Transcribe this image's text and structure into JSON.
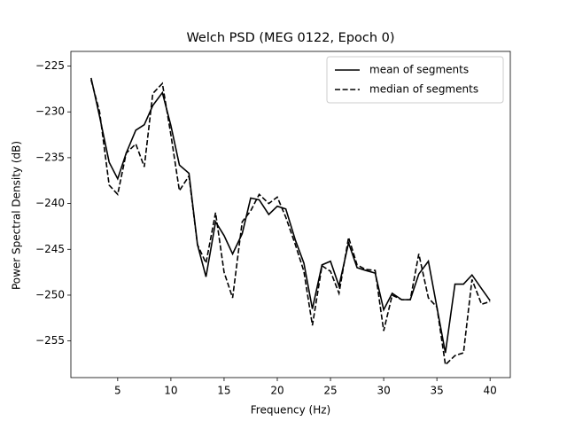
{
  "chart_data": {
    "type": "line",
    "title": "Welch PSD (MEG 0122, Epoch 0)",
    "x_label": "Frequency (Hz)",
    "y_label": "Power Spectral Density (dB)",
    "x": [
      2.5,
      3.3,
      4.2,
      5.0,
      5.8,
      6.7,
      7.5,
      8.3,
      9.2,
      10.0,
      10.8,
      11.7,
      12.5,
      13.3,
      14.2,
      15.0,
      15.8,
      16.7,
      17.5,
      18.3,
      19.2,
      20.0,
      20.8,
      21.7,
      22.5,
      23.3,
      24.2,
      25.0,
      25.8,
      26.7,
      27.5,
      28.3,
      29.2,
      30.0,
      30.8,
      31.7,
      32.5,
      33.3,
      34.2,
      35.0,
      35.8,
      36.7,
      37.5,
      38.3,
      39.2,
      40.0
    ],
    "series": [
      {
        "name": "mean of segments",
        "color": "#000000",
        "dash": false,
        "values": [
          -226.3,
          -230.5,
          -235.5,
          -237.3,
          -234.5,
          -232.0,
          -231.4,
          -229.3,
          -227.9,
          -231.5,
          -235.8,
          -236.7,
          -244.5,
          -248.0,
          -242.0,
          -243.5,
          -245.5,
          -243.3,
          -239.4,
          -239.6,
          -241.2,
          -240.3,
          -240.6,
          -244.0,
          -246.5,
          -251.5,
          -246.7,
          -246.3,
          -249.0,
          -244.3,
          -247.0,
          -247.3,
          -247.6,
          -251.6,
          -249.8,
          -250.5,
          -250.5,
          -247.7,
          -246.3,
          -251.3,
          -256.3,
          -248.8,
          -248.8,
          -247.8,
          -249.3,
          -250.6
        ]
      },
      {
        "name": "median of segments",
        "color": "#000000",
        "dash": true,
        "values": [
          -226.5,
          -230.0,
          -238.0,
          -239.0,
          -234.5,
          -233.5,
          -236.0,
          -228.0,
          -226.9,
          -232.5,
          -238.6,
          -237.0,
          -244.5,
          -246.5,
          -241.0,
          -247.5,
          -250.3,
          -242.0,
          -240.8,
          -239.0,
          -240.0,
          -239.3,
          -241.5,
          -244.5,
          -247.4,
          -253.3,
          -246.8,
          -247.4,
          -249.8,
          -243.7,
          -246.7,
          -247.2,
          -247.3,
          -253.9,
          -250.0,
          -250.5,
          -250.5,
          -245.5,
          -250.3,
          -251.3,
          -257.6,
          -256.6,
          -256.3,
          -248.3,
          -251.0,
          -250.7
        ]
      }
    ],
    "xlim": [
      0.6,
      41.9
    ],
    "ylim": [
      -259.0,
      -223.4
    ],
    "xticks": [
      5,
      10,
      15,
      20,
      25,
      30,
      35,
      40
    ],
    "yticks": [
      {
        "value": -255,
        "label": "−255"
      },
      {
        "value": -250,
        "label": "−250"
      },
      {
        "value": -245,
        "label": "−245"
      },
      {
        "value": -240,
        "label": "−240"
      },
      {
        "value": -235,
        "label": "−235"
      },
      {
        "value": -230,
        "label": "−230"
      },
      {
        "value": -225,
        "label": "−225"
      }
    ],
    "legend": "upper right",
    "grid": false
  }
}
